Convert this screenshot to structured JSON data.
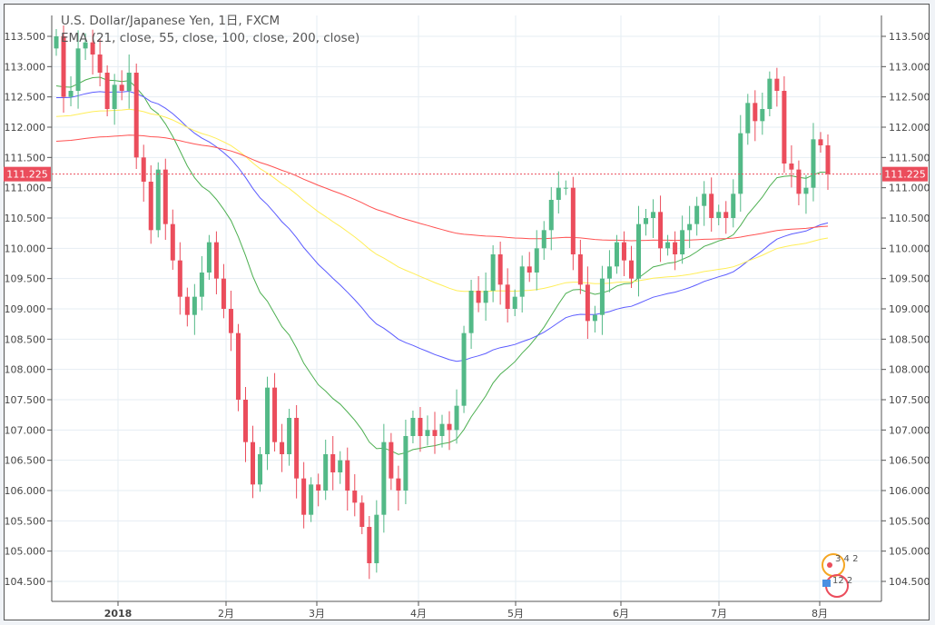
{
  "chart_data": {
    "type": "candlestick",
    "title": "U.S. Dollar/Japanese Yen, 1日, FXCM",
    "indicator_label": "EMA (21, close, 55, close, 100, close, 200, close)",
    "ylim": [
      104.3,
      113.9
    ],
    "y_ticks": [
      "104.500",
      "105.000",
      "105.500",
      "106.000",
      "106.500",
      "107.000",
      "107.500",
      "108.000",
      "108.500",
      "109.000",
      "109.500",
      "110.000",
      "110.500",
      "111.000",
      "111.500",
      "112.000",
      "112.500",
      "113.000",
      "113.500"
    ],
    "x_ticks": [
      "2018",
      "2月",
      "3月",
      "4月",
      "5月",
      "6月",
      "7月",
      "8月"
    ],
    "last_price": 111.225,
    "last_price_label": "111.225",
    "first_open": 113.3,
    "closes": [
      113.5,
      112.5,
      112.6,
      113.3,
      113.4,
      113.2,
      112.9,
      112.3,
      112.7,
      112.6,
      112.9,
      111.5,
      111.1,
      110.3,
      111.3,
      110.4,
      109.8,
      109.2,
      108.9,
      109.2,
      109.6,
      110.1,
      109.5,
      109.0,
      108.6,
      107.5,
      106.8,
      106.1,
      106.6,
      107.7,
      106.8,
      106.6,
      107.2,
      106.2,
      105.6,
      106.1,
      106.0,
      106.6,
      106.3,
      106.5,
      106.0,
      105.8,
      105.4,
      104.8,
      105.6,
      106.8,
      106.2,
      106.0,
      106.9,
      107.2,
      106.9,
      107.0,
      106.9,
      107.1,
      107.0,
      107.4,
      108.6,
      109.3,
      109.1,
      109.3,
      109.9,
      109.4,
      109.0,
      109.2,
      109.7,
      109.6,
      110.0,
      110.3,
      110.8,
      111.0,
      111.0,
      109.9,
      109.4,
      108.8,
      108.9,
      109.5,
      109.7,
      110.1,
      109.8,
      109.5,
      110.4,
      110.5,
      110.6,
      110.0,
      110.1,
      109.9,
      110.3,
      110.4,
      110.7,
      110.9,
      110.5,
      110.6,
      110.5,
      110.9,
      111.9,
      112.4,
      112.1,
      112.3,
      112.8,
      112.6,
      111.4,
      111.3,
      110.9,
      111.0,
      111.8,
      111.7,
      111.225
    ],
    "ema": [
      {
        "period": 21,
        "color": "#4caf50",
        "seed": 112.6
      },
      {
        "period": 55,
        "color": "#5b5bff",
        "seed": 112.45
      },
      {
        "period": 100,
        "color": "#ffee58",
        "seed": 112.15
      },
      {
        "period": 200,
        "color": "#ff5252",
        "seed": 111.75
      }
    ],
    "colors": {
      "up": "#53b987",
      "down": "#eb4d5c",
      "grid": "#e6edf3",
      "price_line": "#eb4d5c"
    }
  },
  "logo": {
    "text_top": "3 4 2",
    "text_bottom": "12 2"
  }
}
